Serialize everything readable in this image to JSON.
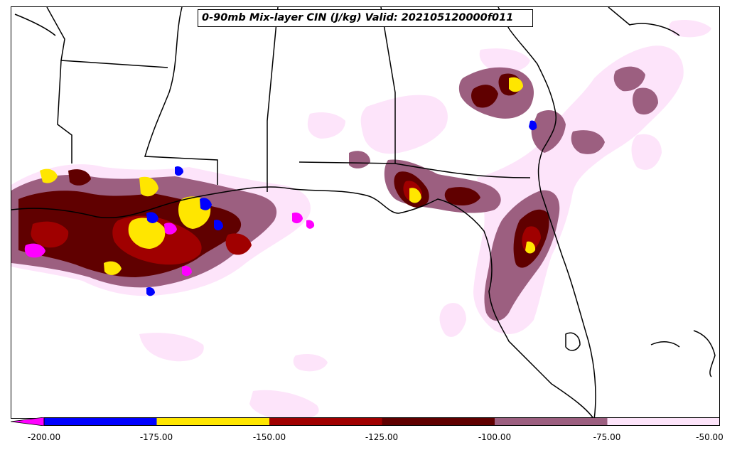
{
  "title": "0-90mb Mix-layer CIN (J/kg) Valid: 202105120000f011",
  "colorbar": {
    "ticks": [
      "-200.00",
      "-175.00",
      "-150.00",
      "-125.00",
      "-100.00",
      "-75.00",
      "-50.00"
    ],
    "levels": [
      {
        "range": "< -200",
        "color": "#ff00ff"
      },
      {
        "range": "-200 to -175",
        "color": "#0000ff"
      },
      {
        "range": "-175 to -150",
        "color": "#ffe600"
      },
      {
        "range": "-150 to -125",
        "color": "#a00000"
      },
      {
        "range": "-125 to -100",
        "color": "#600000"
      },
      {
        "range": "-100 to -75",
        "color": "#9c5f80"
      },
      {
        "range": "-75 to -50",
        "color": "#fde4fa"
      }
    ]
  }
}
